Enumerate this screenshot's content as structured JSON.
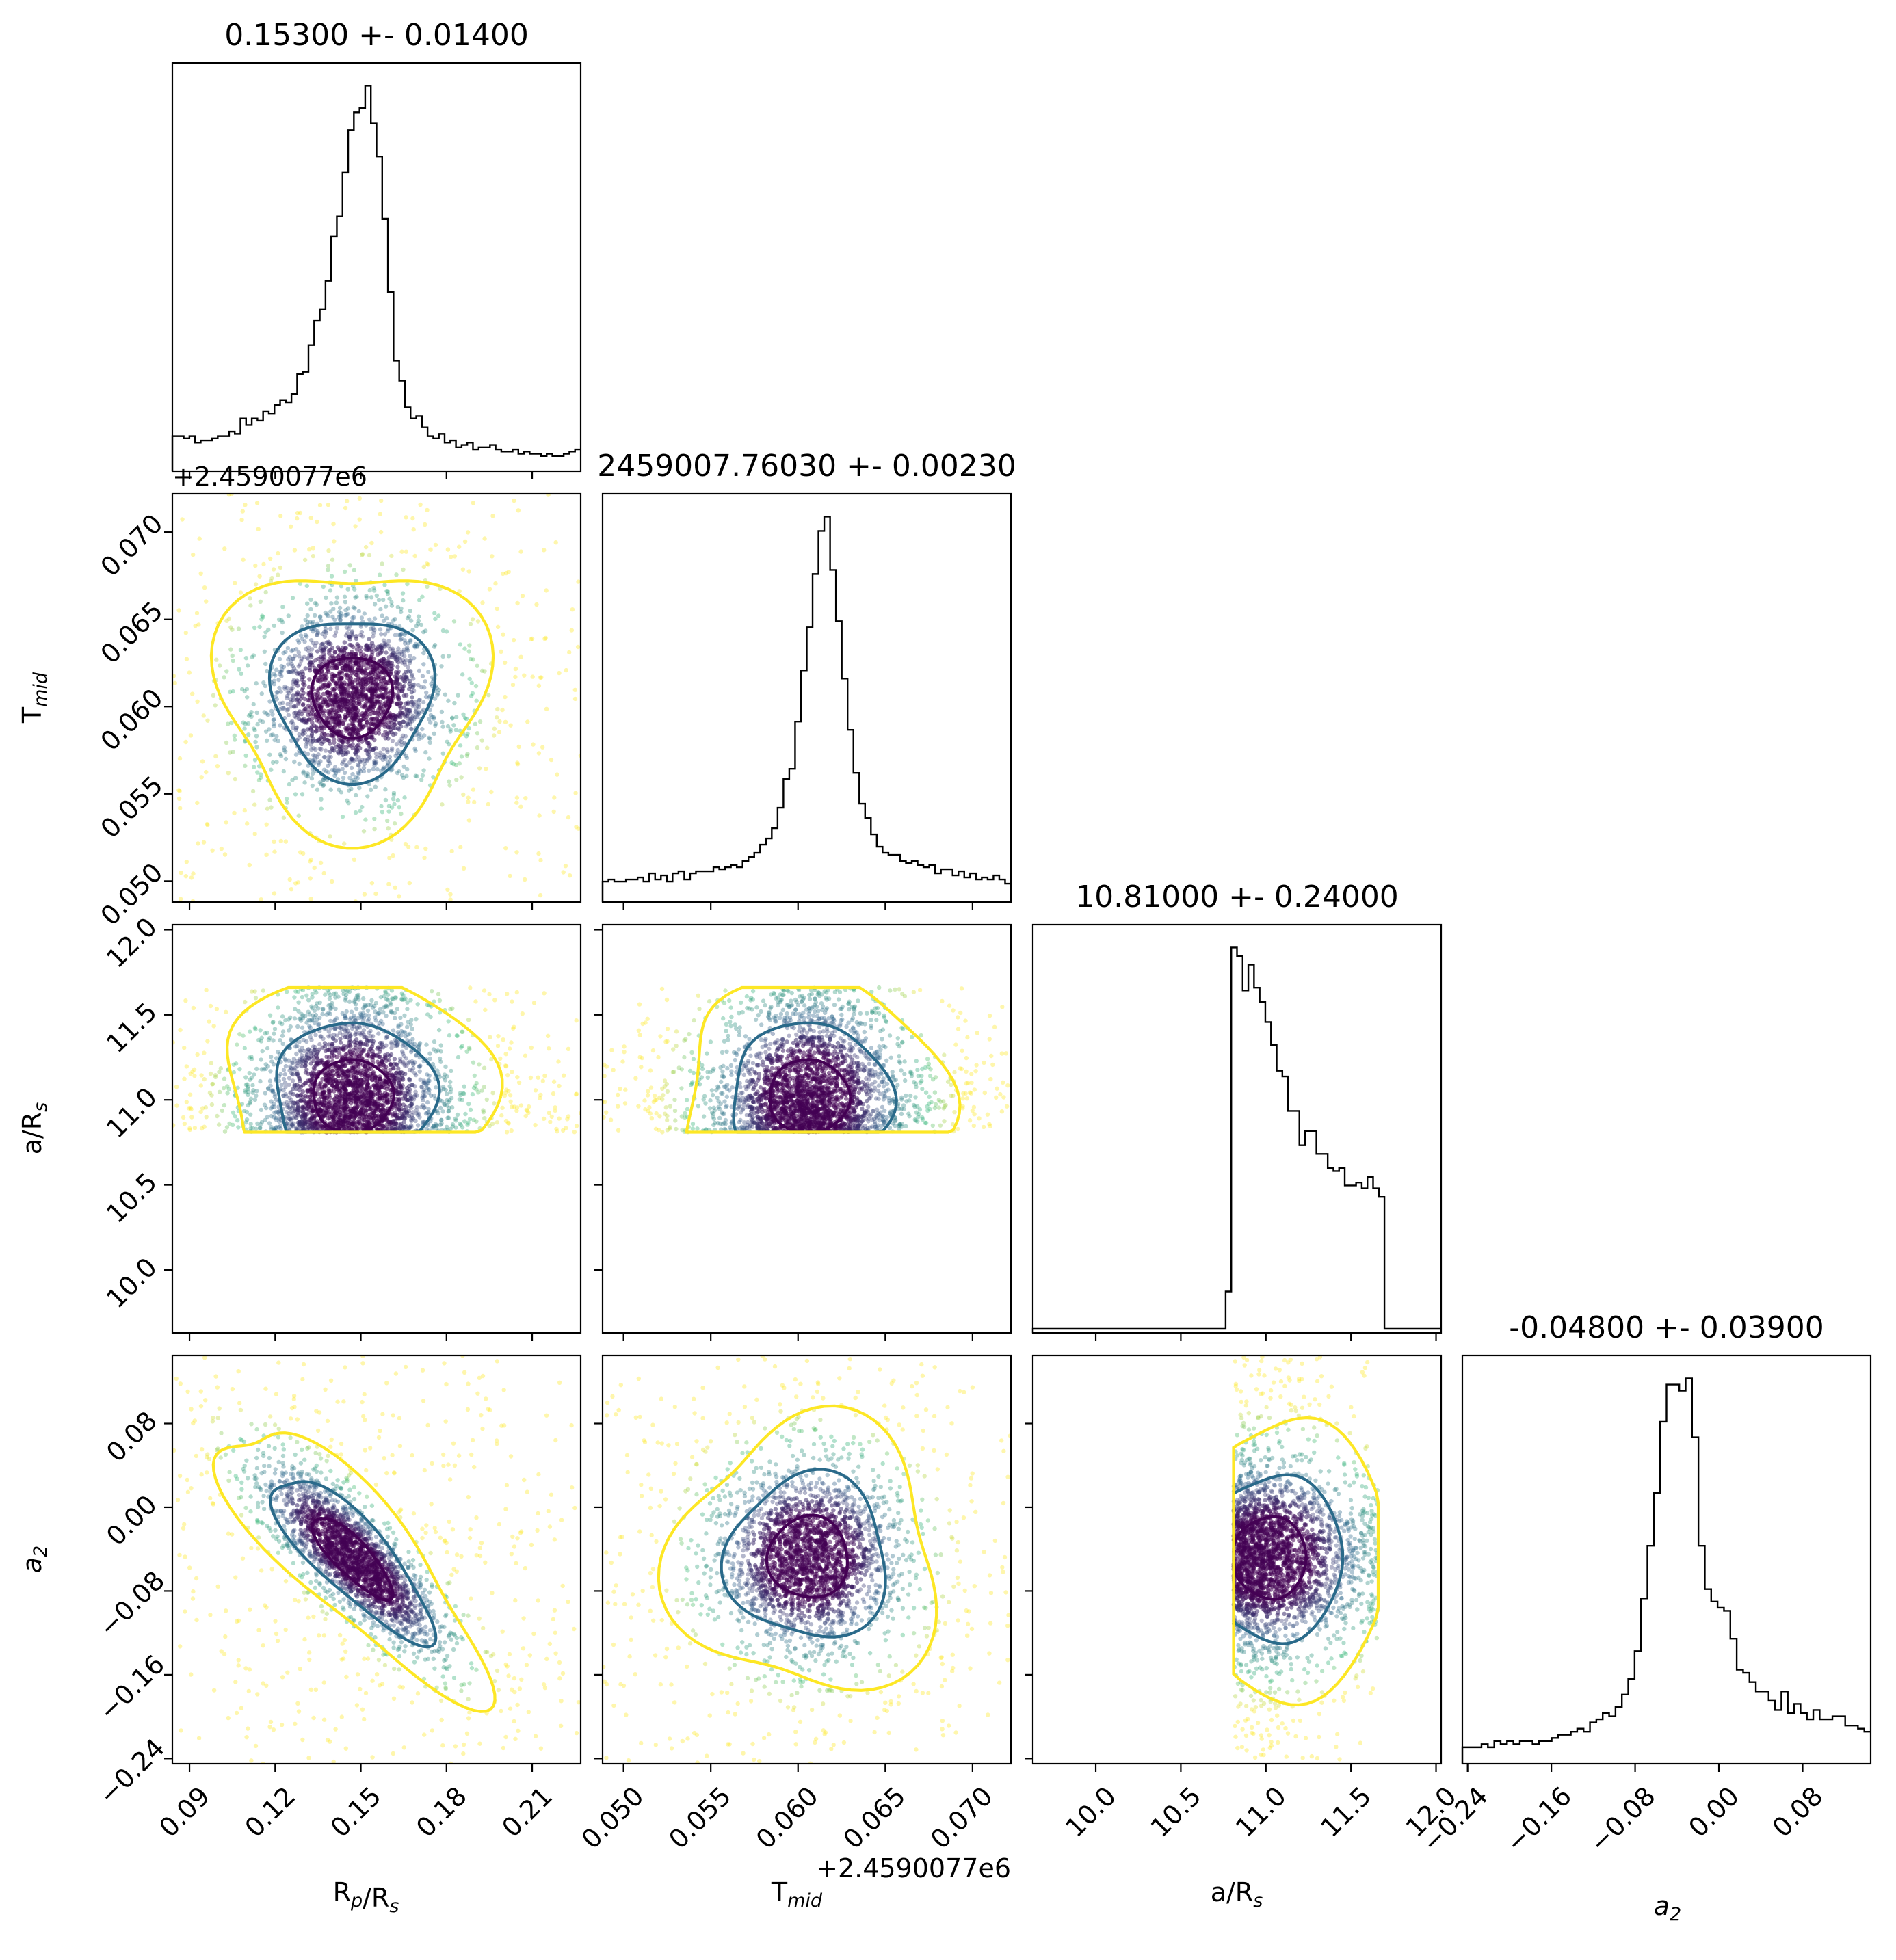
{
  "chart_data": {
    "type": "corner",
    "parameters": [
      {
        "key": "rp",
        "label": "R_p/R_s",
        "title": "0.15300 +- 0.01400",
        "range": [
          0.084,
          0.227
        ],
        "ticks": [
          0.09,
          0.12,
          0.15,
          0.18,
          0.21
        ],
        "tick_labels": [
          "0.09",
          "0.12",
          "0.15",
          "0.18",
          "0.21"
        ],
        "median": 0.153,
        "sigma": 0.014
      },
      {
        "key": "tmid",
        "label": "T_mid",
        "title": "2459007.76030 +- 0.00230",
        "offset_text": "+2.4590077e6",
        "range": [
          0.0488,
          0.0722
        ],
        "ticks": [
          0.05,
          0.055,
          0.06,
          0.065,
          0.07
        ],
        "tick_labels": [
          "0.050",
          "0.055",
          "0.060",
          "0.065",
          "0.070"
        ],
        "median": 0.0603,
        "sigma": 0.0023
      },
      {
        "key": "ars",
        "label": "a/R_s",
        "title": "10.81000 +- 0.24000",
        "range": [
          9.63,
          12.03
        ],
        "ticks": [
          10.0,
          10.5,
          11.0,
          11.5,
          12.0
        ],
        "tick_labels": [
          "10.0",
          "10.5",
          "11.0",
          "11.5",
          "12.0"
        ],
        "median": 10.81,
        "sigma": 0.24
      },
      {
        "key": "a2",
        "label": "a_2",
        "title": "-0.04800 +- 0.03900",
        "range": [
          -0.245,
          0.145
        ],
        "ticks": [
          -0.24,
          -0.16,
          -0.08,
          0.0,
          0.08
        ],
        "tick_labels": [
          "−0.24",
          "−0.16",
          "−0.08",
          "0.00",
          "0.08"
        ],
        "median": -0.048,
        "sigma": 0.039
      }
    ],
    "histograms": {
      "rp": {
        "range": [
          0.084,
          0.227
        ],
        "counts": [
          14,
          14,
          13,
          14,
          11,
          12,
          12,
          13,
          14,
          14,
          16,
          15,
          22,
          19,
          22,
          21,
          25,
          24,
          28,
          30,
          29,
          33,
          42,
          43,
          55,
          66,
          71,
          84,
          104,
          113,
          133,
          152,
          160,
          162,
          172,
          155,
          140,
          112,
          79,
          48,
          39,
          27,
          22,
          23,
          18,
          14,
          13,
          15,
          11,
          12,
          9,
          10,
          11,
          8,
          9,
          9,
          10,
          8,
          7,
          7,
          8,
          6,
          7,
          6,
          6,
          5,
          6,
          5,
          5,
          6,
          7,
          8
        ]
      },
      "tmid": {
        "range": [
          0.0488,
          0.0722
        ],
        "counts": [
          8,
          9,
          8,
          8,
          9,
          9,
          10,
          8,
          12,
          9,
          11,
          8,
          12,
          13,
          9,
          12,
          13,
          13,
          13,
          15,
          14,
          15,
          16,
          15,
          18,
          20,
          22,
          26,
          29,
          34,
          44,
          58,
          63,
          86,
          111,
          132,
          158,
          179,
          186,
          160,
          135,
          107,
          82,
          61,
          46,
          39,
          31,
          25,
          22,
          21,
          21,
          18,
          17,
          18,
          16,
          15,
          16,
          12,
          14,
          14,
          11,
          13,
          10,
          12,
          9,
          10,
          9,
          11,
          9,
          7
        ]
      },
      "ars": {
        "range": [
          9.63,
          12.03
        ],
        "counts": [
          0,
          0,
          0,
          0,
          0,
          0,
          0,
          0,
          0,
          0,
          0,
          0,
          0,
          0,
          0,
          0,
          0,
          0,
          0,
          0,
          0,
          0,
          0,
          0,
          0,
          0,
          0,
          0,
          0,
          0,
          0,
          0,
          0,
          0,
          13,
          133,
          130,
          118,
          127,
          119,
          114,
          107,
          99,
          90,
          88,
          76,
          76,
          64,
          69,
          69,
          61,
          61,
          56,
          55,
          56,
          50,
          50,
          51,
          49,
          53,
          49,
          46,
          0,
          0,
          0,
          0,
          0,
          0,
          0,
          0,
          0,
          0
        ]
      },
      "a2": {
        "range": [
          -0.245,
          0.145
        ],
        "counts": [
          4,
          4,
          4,
          5,
          4,
          6,
          5,
          6,
          5,
          6,
          6,
          5,
          6,
          6,
          7,
          8,
          8,
          9,
          10,
          9,
          12,
          13,
          15,
          14,
          17,
          21,
          26,
          35,
          52,
          69,
          86,
          109,
          121,
          121,
          119,
          123,
          104,
          69,
          55,
          51,
          49,
          48,
          39,
          29,
          28,
          25,
          22,
          22,
          19,
          16,
          22,
          15,
          18,
          15,
          13,
          16,
          13,
          13,
          14,
          14,
          11,
          11,
          10,
          9
        ]
      }
    },
    "scatter_2d": [
      {
        "x": "rp",
        "y": "tmid",
        "center": [
          0.147,
          0.0606
        ],
        "sd": [
          0.014,
          0.0023
        ],
        "rho": 0.0
      },
      {
        "x": "rp",
        "y": "ars",
        "center": [
          0.147,
          11.02
        ],
        "sd": [
          0.014,
          0.24
        ],
        "rho": 0.0
      },
      {
        "x": "tmid",
        "y": "ars",
        "center": [
          0.0606,
          11.02
        ],
        "sd": [
          0.0023,
          0.24
        ],
        "rho": 0.0
      },
      {
        "x": "rp",
        "y": "a2",
        "center": [
          0.147,
          -0.048
        ],
        "sd": [
          0.014,
          0.039
        ],
        "rho": -0.82
      },
      {
        "x": "tmid",
        "y": "a2",
        "center": [
          0.0606,
          -0.048
        ],
        "sd": [
          0.0023,
          0.039
        ],
        "rho": 0.0
      },
      {
        "x": "ars",
        "y": "a2",
        "center": [
          11.02,
          -0.048
        ],
        "sd": [
          0.24,
          0.039
        ],
        "rho": 0.0
      }
    ],
    "ars_prior_bounds": [
      10.81,
      11.66
    ],
    "contour_colors": [
      "#440154",
      "#2a6a8a",
      "#fde725"
    ],
    "point_colormap": [
      "#440154",
      "#31688e",
      "#35b779",
      "#fde725"
    ],
    "grid": false,
    "legend": "none"
  }
}
